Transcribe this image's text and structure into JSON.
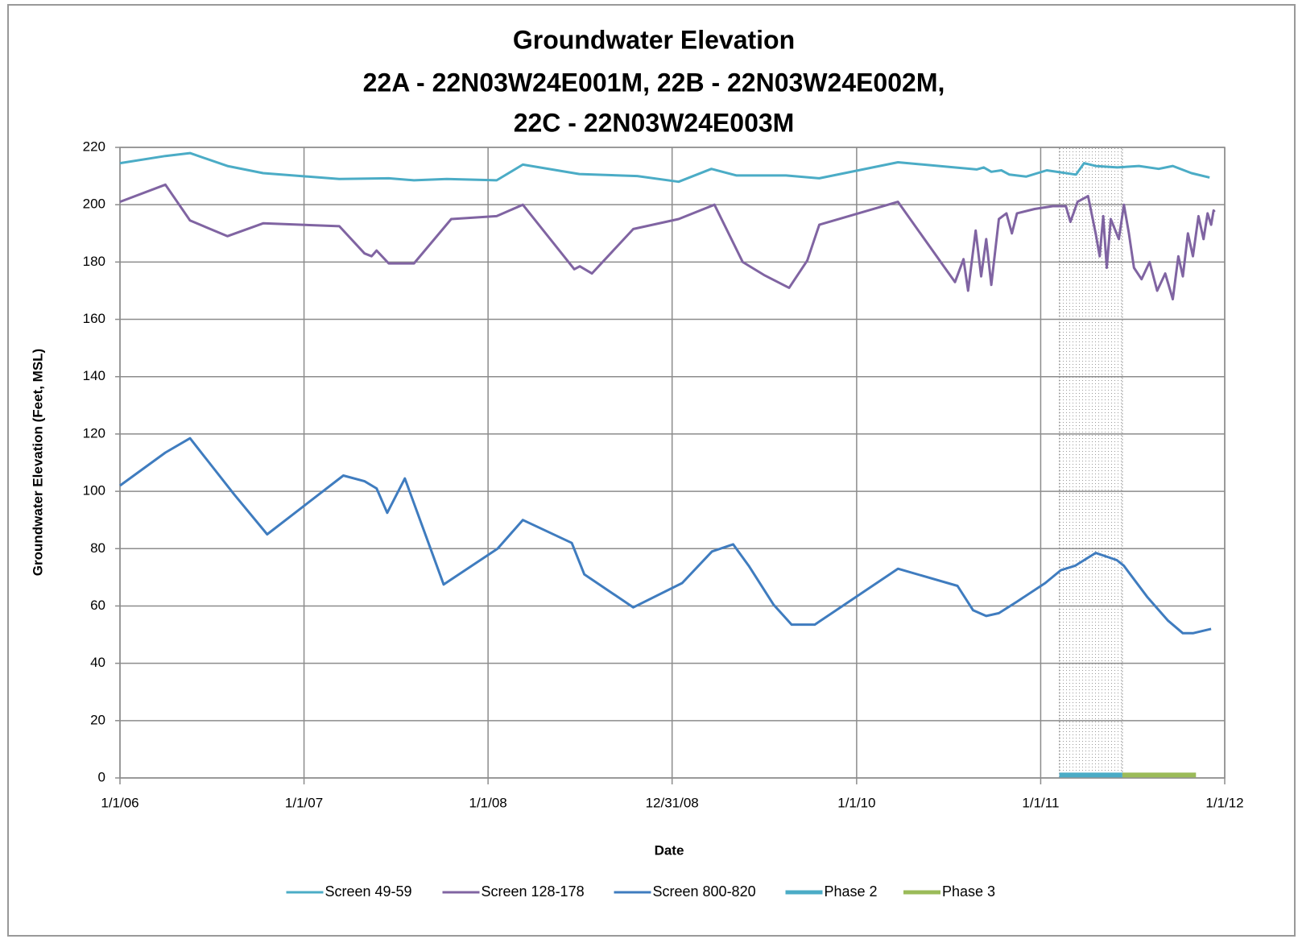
{
  "chart_data": {
    "type": "line",
    "title": "Groundwater Elevation",
    "subtitle": [
      "22A - 22N03W24E001M, 22B - 22N03W24E002M,",
      "22C - 22N03W24E003M"
    ],
    "x_label": "Date",
    "y_label": "Groundwater Elevation (Feet, MSL)",
    "xlim": [
      "1/1/06",
      "1/1/12"
    ],
    "xticks": [
      "1/1/06",
      "1/1/07",
      "1/1/08",
      "12/31/08",
      "1/1/10",
      "1/1/11",
      "1/1/12"
    ],
    "ylim": [
      0,
      220
    ],
    "yticks": [
      0,
      20,
      40,
      60,
      80,
      100,
      120,
      140,
      160,
      180,
      200,
      220
    ],
    "grid": true,
    "legend": "bottom",
    "series": [
      {
        "name": "Screen 49-59",
        "color": "#4bacc6",
        "x": [
          "1/1/06",
          "4/1/06",
          "5/20/06",
          "8/2/06",
          "10/12/06",
          "3/12/07",
          "6/18/07",
          "8/7/07",
          "10/11/07",
          "1/18/08",
          "3/10/08",
          "6/30/08",
          "10/23/08",
          "1/13/09",
          "3/19/09",
          "5/8/09",
          "8/14/09",
          "10/19/09",
          "3/24/10",
          "8/27/10",
          "9/10/10",
          "9/25/10",
          "10/15/10",
          "10/31/10",
          "12/3/10",
          "1/13/11",
          "3/12/11",
          "3/28/11",
          "4/20/11",
          "6/2/11",
          "7/15/11",
          "8/23/11",
          "9/20/11",
          "10/27/11",
          "12/2/11"
        ],
        "values": [
          214.5,
          217,
          218,
          213.5,
          211,
          209,
          209.2,
          208.5,
          209,
          208.5,
          214,
          210.7,
          210,
          208,
          212.5,
          210.2,
          210.2,
          209.2,
          214.8,
          212.3,
          213,
          211.5,
          212,
          210.5,
          209.8,
          212,
          210.5,
          214.5,
          213.5,
          213,
          213.5,
          212.5,
          213.5,
          211,
          209.5
        ]
      },
      {
        "name": "Screen 128-178",
        "color": "#8064a2",
        "x": [
          "1/1/06",
          "4/1/06",
          "5/20/06",
          "8/2/06",
          "10/12/06",
          "3/12/07",
          "5/1/07",
          "5/15/07",
          "5/25/07",
          "6/18/07",
          "8/7/07",
          "10/20/07",
          "1/18/08",
          "3/10/08",
          "6/20/08",
          "7/1/08",
          "7/25/08",
          "10/15/08",
          "1/13/09",
          "3/25/09",
          "5/20/09",
          "7/1/09",
          "8/20/09",
          "9/25/09",
          "10/19/09",
          "3/24/10",
          "7/15/10",
          "8/1/10",
          "8/10/10",
          "8/25/10",
          "9/5/10",
          "9/15/10",
          "9/25/10",
          "10/10/10",
          "10/25/10",
          "11/5/10",
          "11/15/10",
          "12/20/10",
          "1/25/11",
          "2/20/11",
          "3/1/11",
          "3/15/11",
          "4/5/11",
          "4/20/11",
          "4/28/11",
          "5/5/11",
          "5/12/11",
          "5/20/11",
          "6/5/11",
          "6/15/11",
          "6/25/11",
          "7/5/11",
          "7/20/11",
          "8/5/11",
          "8/20/11",
          "9/5/11",
          "9/20/11",
          "10/1/11",
          "10/10/11",
          "10/20/11",
          "10/30/11",
          "11/10/11",
          "11/20/11",
          "11/28/11",
          "12/5/11",
          "12/10/11",
          "12/12/11"
        ],
        "values": [
          201,
          207,
          194.5,
          189,
          193.5,
          192.5,
          183,
          182,
          184,
          179.5,
          179.5,
          195,
          196,
          200,
          177.5,
          178.5,
          176,
          191.5,
          195,
          200,
          180,
          175.5,
          171,
          180.5,
          193,
          201,
          173,
          181,
          170,
          191,
          175,
          188,
          172,
          195,
          197,
          190,
          197,
          198.5,
          199.5,
          199.5,
          194,
          201,
          203,
          190,
          182,
          196,
          178,
          195,
          188,
          200,
          190,
          178,
          174,
          180,
          170,
          176,
          167,
          182,
          175,
          190,
          182,
          196,
          188,
          197,
          193,
          198,
          197.5
        ]
      },
      {
        "name": "Screen 800-820",
        "color": "#3f7cbf",
        "x": [
          "1/1/06",
          "4/1/06",
          "5/20/06",
          "8/15/06",
          "10/20/06",
          "3/20/07",
          "5/1/07",
          "5/25/07",
          "6/15/07",
          "7/20/07",
          "10/5/07",
          "1/20/08",
          "3/10/08",
          "6/15/08",
          "7/10/08",
          "10/15/08",
          "1/20/09",
          "3/20/09",
          "5/1/09",
          "6/1/09",
          "7/20/09",
          "8/25/09",
          "10/10/09",
          "3/24/10",
          "7/20/10",
          "8/20/10",
          "9/15/10",
          "10/10/10",
          "11/15/10",
          "1/10/11",
          "2/10/11",
          "3/10/11",
          "4/20/11",
          "6/1/11",
          "6/15/11",
          "8/1/11",
          "9/10/11",
          "10/10/11",
          "10/30/11",
          "12/5/11"
        ],
        "values": [
          102,
          113.5,
          118.5,
          99,
          85,
          105.5,
          103.5,
          101,
          92.5,
          104.5,
          67.5,
          80,
          90,
          82,
          71,
          59.5,
          68,
          79,
          81.5,
          74,
          60.5,
          53.5,
          53.5,
          73,
          67,
          58.5,
          56.5,
          57.5,
          61.5,
          68,
          72.5,
          74,
          78.5,
          76,
          74,
          63,
          55,
          50.5,
          50.5,
          52
        ]
      },
      {
        "name": "Phase 2",
        "color": "#4bacc6",
        "x": [
          "2/7/11",
          "6/12/11"
        ],
        "values": [
          1,
          1
        ]
      },
      {
        "name": "Phase 3",
        "color": "#9bbb59",
        "x": [
          "6/12/11",
          "11/5/11"
        ],
        "values": [
          1,
          1
        ]
      }
    ]
  }
}
